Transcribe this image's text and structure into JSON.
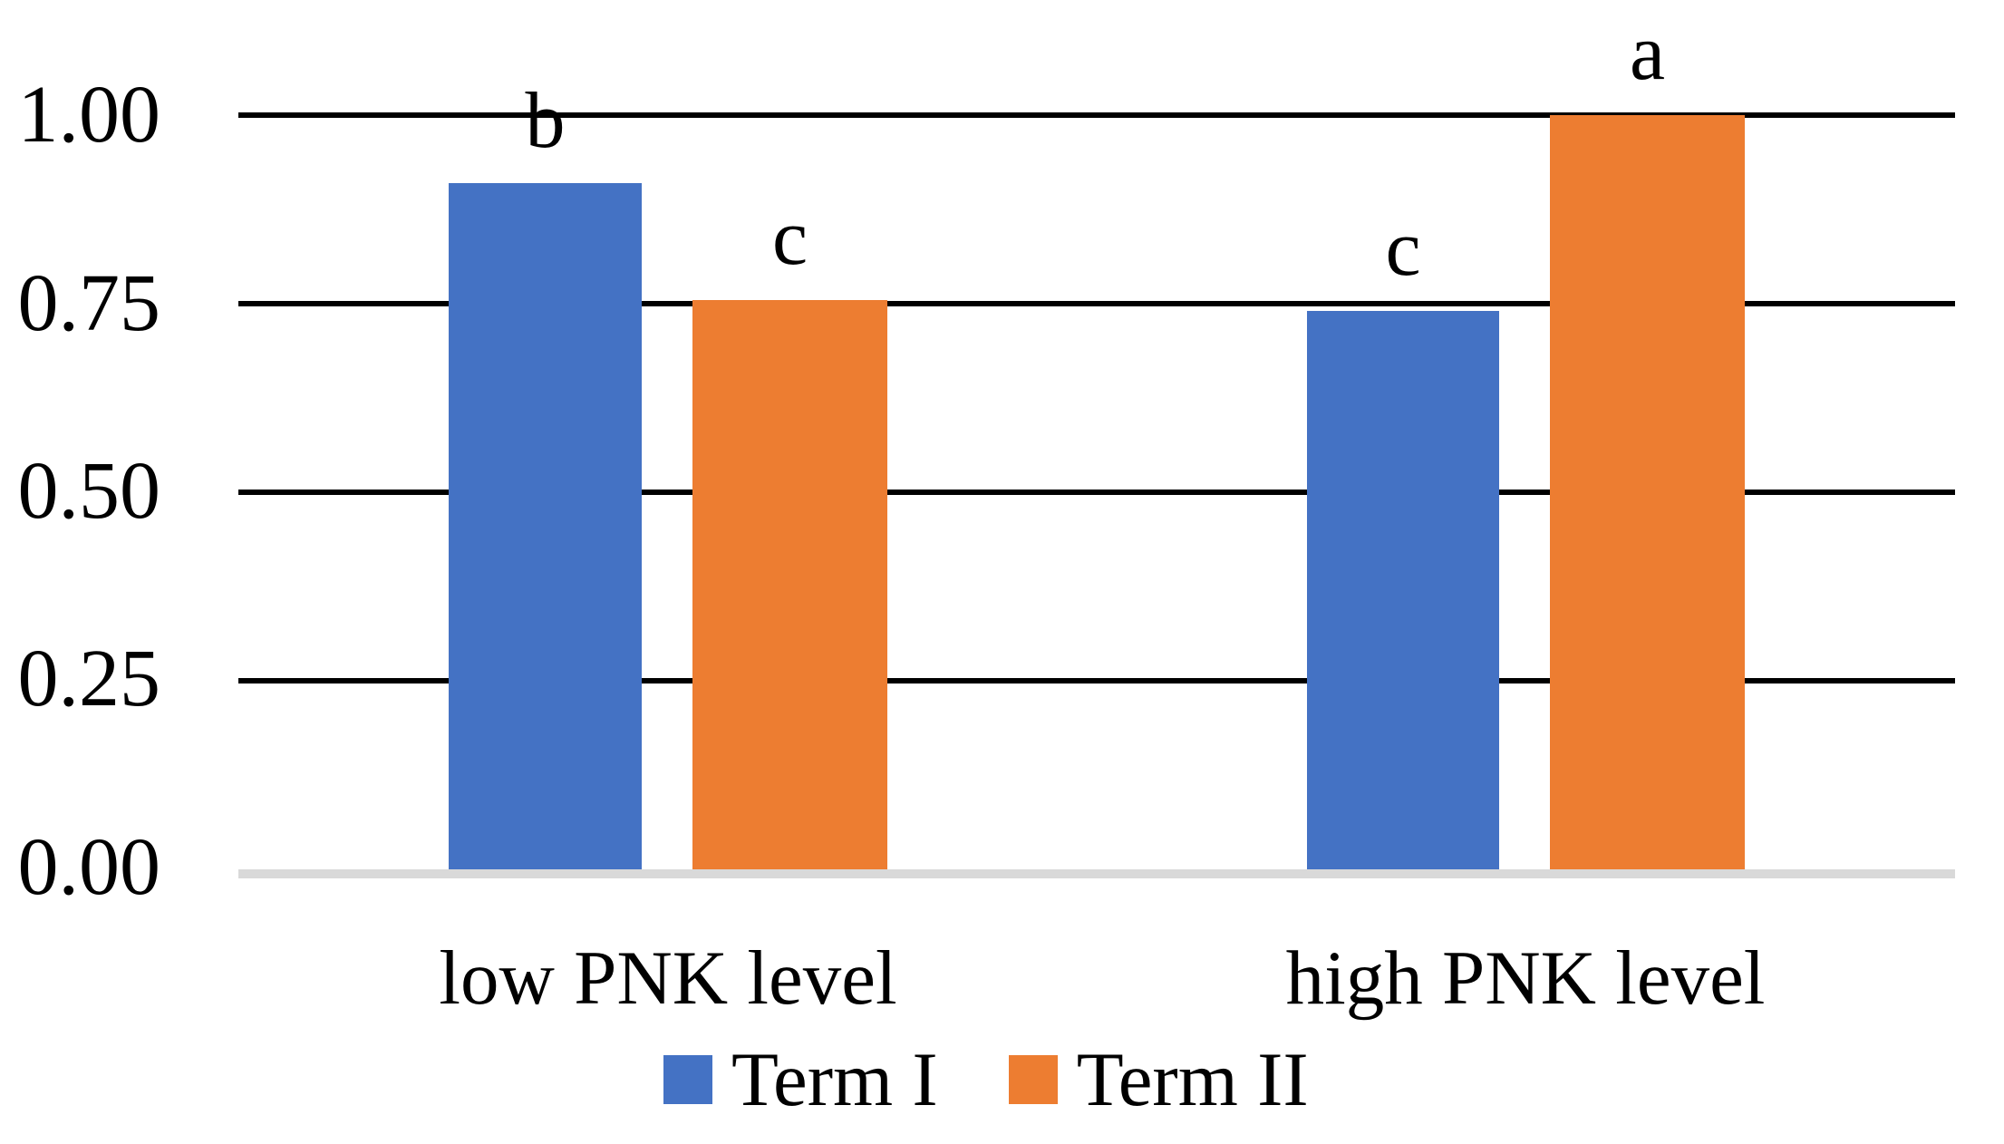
{
  "chart_data": {
    "type": "bar",
    "title": "",
    "categories": [
      "low PNK level",
      "high PNK level"
    ],
    "series": [
      {
        "name": "Term I",
        "color": "#4472C4",
        "values": [
          0.91,
          0.74
        ],
        "significance_letters": [
          "b",
          "c"
        ]
      },
      {
        "name": "Term II",
        "color": "#ED7D31",
        "values": [
          0.755,
          1.0
        ],
        "significance_letters": [
          "c",
          "a"
        ]
      }
    ],
    "yticks": [
      {
        "label": "1.00",
        "value": 1.0
      },
      {
        "label": "0.75",
        "value": 0.75
      },
      {
        "label": "0.50",
        "value": 0.5
      },
      {
        "label": "0.25",
        "value": 0.25
      },
      {
        "label": "0.00",
        "value": 0.0
      }
    ],
    "ylim": [
      0,
      1.0
    ],
    "grid": "horizontal",
    "gridlines": {
      "values": [
        1.0,
        0.75,
        0.5,
        0.25
      ],
      "color": "#000000"
    },
    "baseline": {
      "value": 0.0,
      "color": "#D9D9D9"
    },
    "legend": {
      "position": "bottom",
      "entries": [
        "Term I",
        "Term II"
      ]
    },
    "colors": {
      "term1_blue": "#4472C4",
      "term2_orange": "#ED7D31",
      "gridline": "#000000",
      "axis_baseline": "#D9D9D9",
      "text": "#000000",
      "background": "#FFFFFF"
    }
  }
}
